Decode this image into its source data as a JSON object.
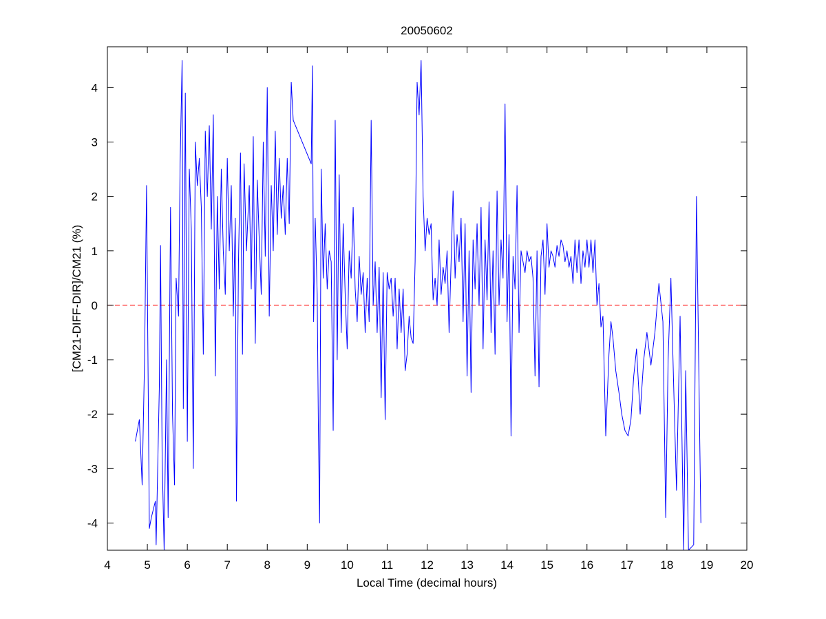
{
  "chart_data": {
    "type": "line",
    "title": "20050602",
    "x_label": "Local Time (decimal hours)",
    "y_label": "[CM21-DIFF-DIR]/CM21 (%)",
    "xlim": [
      4,
      20
    ],
    "ylim": [
      -4.5,
      4.75
    ],
    "xticks": [
      4,
      5,
      6,
      7,
      8,
      9,
      10,
      11,
      12,
      13,
      14,
      15,
      16,
      17,
      18,
      19,
      20
    ],
    "yticks": [
      -4,
      -3,
      -2,
      -1,
      0,
      1,
      2,
      3,
      4
    ],
    "color": "#0000ff",
    "reference_line": {
      "value": 0,
      "color": "#ff0000",
      "style": "dashed"
    },
    "x": [
      4.7,
      4.8,
      4.87,
      4.93,
      4.98,
      5.05,
      5.1,
      5.2,
      5.22,
      5.3,
      5.33,
      5.37,
      5.42,
      5.48,
      5.52,
      5.58,
      5.63,
      5.68,
      5.72,
      5.78,
      5.82,
      5.87,
      5.9,
      5.95,
      6.0,
      6.05,
      6.1,
      6.15,
      6.2,
      6.25,
      6.3,
      6.35,
      6.4,
      6.45,
      6.5,
      6.55,
      6.6,
      6.65,
      6.7,
      6.75,
      6.8,
      6.85,
      6.9,
      6.95,
      7.0,
      7.05,
      7.1,
      7.15,
      7.2,
      7.23,
      7.28,
      7.33,
      7.38,
      7.42,
      7.48,
      7.55,
      7.6,
      7.65,
      7.7,
      7.75,
      7.8,
      7.85,
      7.9,
      7.95,
      8.0,
      8.05,
      8.1,
      8.15,
      8.2,
      8.25,
      8.3,
      8.35,
      8.4,
      8.45,
      8.5,
      8.55,
      8.6,
      8.65,
      9.1,
      9.13,
      9.16,
      9.2,
      9.25,
      9.28,
      9.31,
      9.35,
      9.4,
      9.45,
      9.5,
      9.55,
      9.6,
      9.65,
      9.7,
      9.75,
      9.8,
      9.85,
      9.9,
      9.95,
      10.0,
      10.05,
      10.1,
      10.15,
      10.2,
      10.25,
      10.3,
      10.35,
      10.4,
      10.45,
      10.5,
      10.55,
      10.6,
      10.65,
      10.7,
      10.75,
      10.8,
      10.85,
      10.9,
      10.95,
      11.0,
      11.05,
      11.1,
      11.15,
      11.2,
      11.25,
      11.3,
      11.35,
      11.4,
      11.45,
      11.5,
      11.55,
      11.6,
      11.65,
      11.7,
      11.75,
      11.8,
      11.85,
      11.9,
      11.95,
      12.0,
      12.05,
      12.1,
      12.15,
      12.2,
      12.25,
      12.3,
      12.35,
      12.4,
      12.45,
      12.5,
      12.55,
      12.6,
      12.65,
      12.7,
      12.75,
      12.8,
      12.85,
      12.9,
      12.95,
      13.0,
      13.05,
      13.1,
      13.15,
      13.2,
      13.25,
      13.3,
      13.35,
      13.4,
      13.45,
      13.5,
      13.55,
      13.6,
      13.65,
      13.7,
      13.75,
      13.8,
      13.85,
      13.9,
      13.95,
      14.0,
      14.05,
      14.1,
      14.15,
      14.2,
      14.25,
      14.3,
      14.35,
      14.4,
      14.45,
      14.5,
      14.55,
      14.6,
      14.65,
      14.7,
      14.75,
      14.8,
      14.85,
      14.9,
      14.95,
      15.0,
      15.05,
      15.1,
      15.15,
      15.2,
      15.25,
      15.3,
      15.35,
      15.4,
      15.45,
      15.5,
      15.55,
      15.6,
      15.65,
      15.7,
      15.75,
      15.8,
      15.85,
      15.9,
      15.95,
      16.0,
      16.05,
      16.1,
      16.15,
      16.2,
      16.25,
      16.3,
      16.35,
      16.4,
      16.47,
      16.55,
      16.6,
      16.65,
      16.72,
      16.8,
      16.87,
      16.95,
      17.03,
      17.1,
      17.17,
      17.24,
      17.33,
      17.42,
      17.5,
      17.6,
      17.7,
      17.8,
      17.9,
      17.97,
      18.03,
      18.1,
      18.17,
      18.24,
      18.33,
      18.42,
      18.47,
      18.54,
      18.67,
      18.74,
      18.85
    ],
    "values": [
      -2.5,
      -2.1,
      -3.3,
      -1.0,
      2.2,
      -4.1,
      -3.9,
      -3.6,
      -4.4,
      -1.5,
      1.1,
      -2.8,
      -4.5,
      -1.0,
      -3.9,
      1.8,
      -2.0,
      -3.3,
      0.5,
      -0.2,
      2.6,
      4.5,
      -1.9,
      3.9,
      -2.5,
      2.5,
      1.4,
      -3.0,
      3.0,
      2.2,
      2.7,
      1.8,
      -0.9,
      3.2,
      2.0,
      3.3,
      1.4,
      3.5,
      -1.3,
      2.0,
      0.3,
      2.5,
      1.0,
      0.2,
      2.7,
      1.0,
      2.2,
      -0.2,
      1.6,
      -3.6,
      0.8,
      2.8,
      -0.9,
      2.6,
      1.0,
      2.2,
      0.3,
      3.1,
      -0.7,
      2.3,
      1.2,
      0.2,
      3.0,
      0.9,
      4.0,
      -0.2,
      2.2,
      1.0,
      3.2,
      1.3,
      2.7,
      1.6,
      2.2,
      1.3,
      2.7,
      1.5,
      4.1,
      3.4,
      2.6,
      4.4,
      -0.3,
      1.6,
      0.2,
      -2.3,
      -4.0,
      2.5,
      0.5,
      1.5,
      0.3,
      1.0,
      0.8,
      -2.3,
      3.4,
      -1.0,
      2.4,
      -0.5,
      1.5,
      0.2,
      -0.8,
      1.0,
      0.5,
      1.8,
      0.3,
      -0.3,
      0.9,
      0.2,
      0.6,
      -0.5,
      0.5,
      -0.3,
      3.4,
      0.0,
      0.8,
      -0.5,
      0.7,
      -1.7,
      0.6,
      -2.1,
      0.6,
      0.3,
      0.5,
      -0.2,
      0.5,
      -0.8,
      0.3,
      -0.5,
      0.3,
      -1.2,
      -0.9,
      -0.2,
      -0.6,
      -0.7,
      0.8,
      4.1,
      3.5,
      4.5,
      2.0,
      1.0,
      1.6,
      1.3,
      1.5,
      0.1,
      0.5,
      0.0,
      1.2,
      0.2,
      0.7,
      0.4,
      1.0,
      -0.5,
      0.8,
      2.1,
      0.5,
      1.3,
      0.8,
      1.6,
      -0.3,
      1.5,
      -1.3,
      1.0,
      -1.6,
      1.2,
      0.3,
      1.5,
      0.0,
      1.8,
      -0.8,
      1.2,
      0.1,
      1.9,
      -0.5,
      1.0,
      -0.9,
      2.1,
      0.0,
      1.2,
      0.5,
      3.7,
      -0.3,
      1.3,
      -2.4,
      0.9,
      0.3,
      2.2,
      -0.5,
      1.0,
      0.8,
      0.6,
      1.0,
      0.8,
      0.9,
      0.5,
      -1.3,
      1.0,
      -1.5,
      0.9,
      1.2,
      0.2,
      1.5,
      0.7,
      1.0,
      0.9,
      0.7,
      1.1,
      0.9,
      1.2,
      1.1,
      0.8,
      1.0,
      0.7,
      0.9,
      0.4,
      1.2,
      0.6,
      1.2,
      0.4,
      1.0,
      0.7,
      1.2,
      0.7,
      1.2,
      0.6,
      1.2,
      0.0,
      0.4,
      -0.4,
      -0.2,
      -2.4,
      -0.9,
      -0.3,
      -0.6,
      -1.2,
      -1.6,
      -2.0,
      -2.3,
      -2.4,
      -2.1,
      -1.3,
      -0.8,
      -2.0,
      -1.0,
      -0.5,
      -1.1,
      -0.5,
      0.4,
      -0.3,
      -3.9,
      -1.0,
      0.5,
      -1.5,
      -3.4,
      -0.2,
      -4.5,
      -1.2,
      -4.5,
      -4.4,
      2.0,
      -4.0
    ]
  }
}
